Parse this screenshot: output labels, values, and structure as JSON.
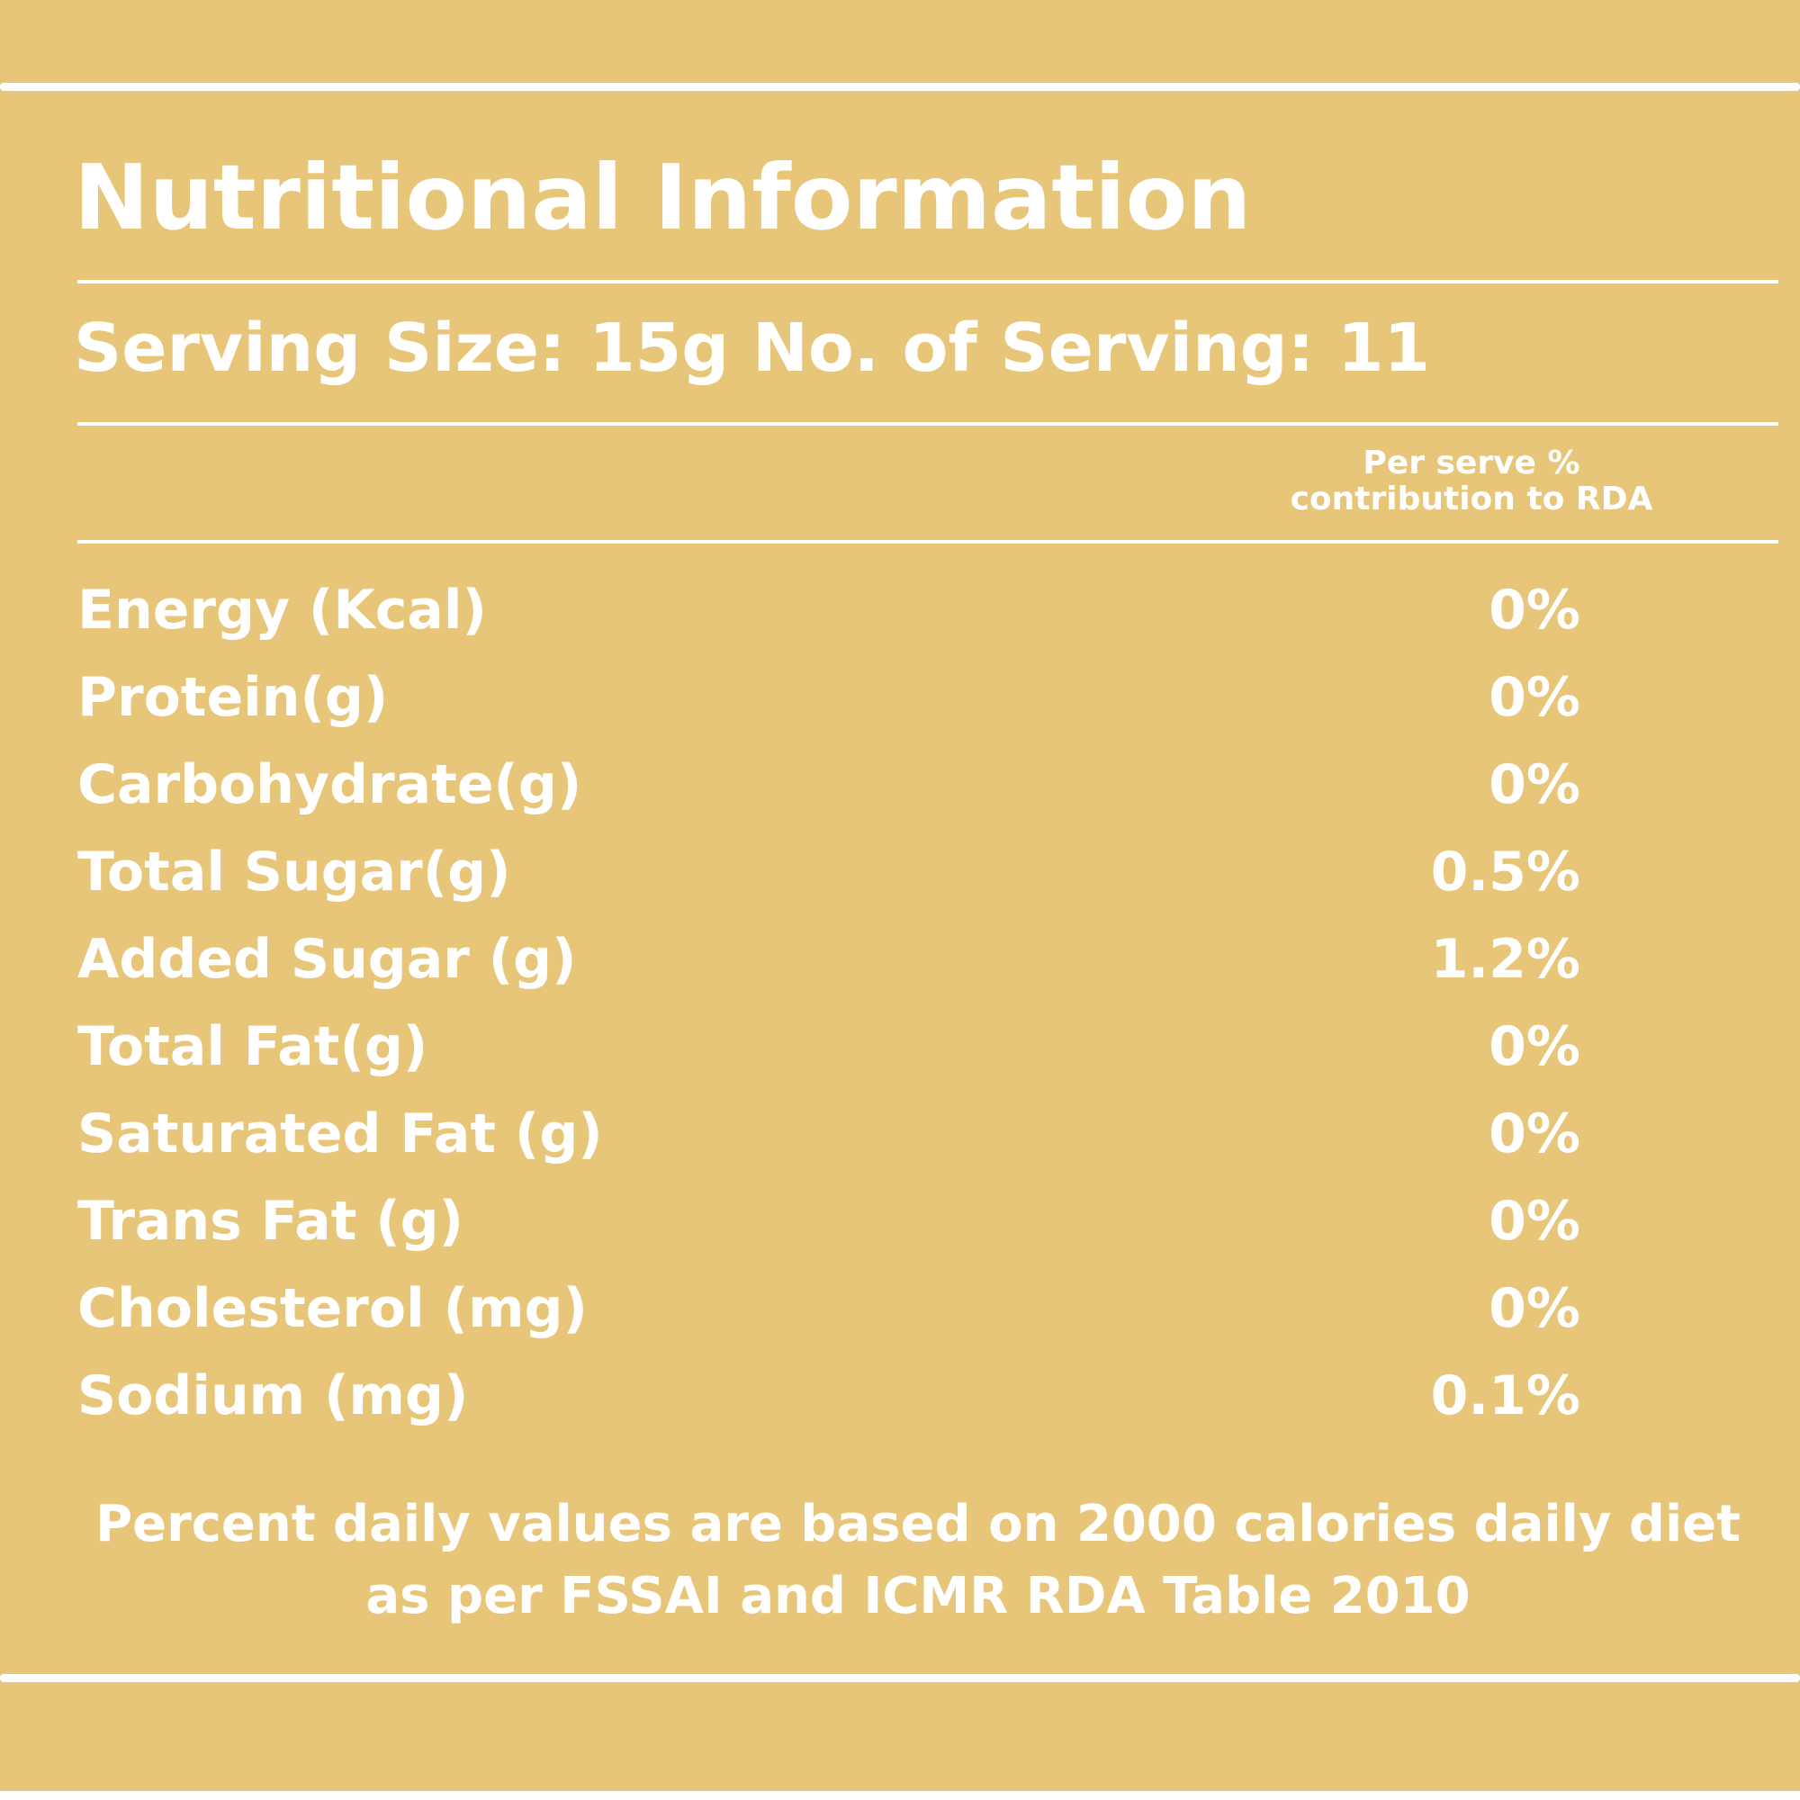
{
  "title": "Nutritional Information",
  "serving_line": "Serving Size: 15g No. of Serving: 11",
  "column_header": {
    "line1": "Per serve %",
    "line2": "contribution to RDA"
  },
  "rows": [
    {
      "name": "Energy (Kcal)",
      "value": "0%"
    },
    {
      "name": "Protein(g)",
      "value": "0%"
    },
    {
      "name": "Carbohydrate(g)",
      "value": "0%"
    },
    {
      "name": "Total Sugar(g)",
      "value": "0.5%"
    },
    {
      "name": "Added Sugar (g)",
      "value": "1.2%"
    },
    {
      "name": "Total Fat(g)",
      "value": "0%"
    },
    {
      "name": "Saturated Fat (g)",
      "value": "0%"
    },
    {
      "name": "Trans Fat (g)",
      "value": "0%"
    },
    {
      "name": "Cholesterol (mg)",
      "value": "0%"
    },
    {
      "name": "Sodium (mg)",
      "value": "0.1%"
    }
  ],
  "footnote": {
    "line1": "Percent daily values are based on 2000 calories daily diet",
    "line2": "as per FSSAI and ICMR RDA Table 2010"
  },
  "colors": {
    "background": "#e8c679",
    "text": "#ffffff"
  }
}
